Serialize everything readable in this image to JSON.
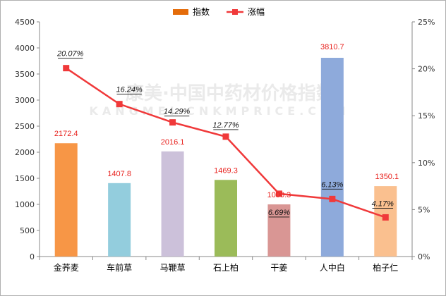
{
  "watermark": {
    "line1": "康美·中国中药材价格指数",
    "line2": "KANGMEI CNKMPRICE.COM"
  },
  "chart_data": {
    "type": "bar",
    "categories": [
      "金荞麦",
      "车前草",
      "马鞭草",
      "石上柏",
      "干姜",
      "人中白",
      "柏子仁"
    ],
    "series": [
      {
        "name": "指数",
        "type": "bar",
        "axis": "left",
        "values": [
          2172.4,
          1407.8,
          2016.1,
          1469.3,
          1000.3,
          3810.7,
          1350.1
        ],
        "value_labels": [
          "2172.4",
          "1407.8",
          "2016.1",
          "1469.3",
          "1000.3",
          "3810.7",
          "1350.1"
        ],
        "colors": [
          "#f79646",
          "#93cddd",
          "#ccc1da",
          "#9bbb59",
          "#d99694",
          "#8eaadb",
          "#fac08f"
        ]
      },
      {
        "name": "涨幅",
        "type": "line",
        "axis": "right",
        "values": [
          20.07,
          16.24,
          14.29,
          12.77,
          6.69,
          6.13,
          4.17
        ],
        "value_labels": [
          "20.07%",
          "16.24%",
          "14.29%",
          "12.77%",
          "6.69%",
          "6.13%",
          "4.17%"
        ],
        "color": "#f0393a"
      }
    ],
    "legend": {
      "position": "top-center",
      "items": [
        {
          "label": "指数",
          "color": "#e46c0a",
          "kind": "bar"
        },
        {
          "label": "涨幅",
          "color": "#f0393a",
          "kind": "line"
        }
      ]
    },
    "y_left": {
      "ylim": [
        0,
        4500
      ],
      "ticks": [
        0,
        500,
        1000,
        1500,
        2000,
        2500,
        3000,
        3500,
        4000,
        4500
      ],
      "tick_labels": [
        "0",
        "500",
        "1000",
        "1500",
        "2000",
        "2500",
        "3000",
        "3500",
        "4000",
        "4500"
      ]
    },
    "y_right": {
      "ylim": [
        0,
        25
      ],
      "ticks": [
        0,
        5,
        10,
        15,
        20,
        25
      ],
      "tick_labels": [
        "0%",
        "5%",
        "10%",
        "15%",
        "20%",
        "25%"
      ]
    },
    "grid": false,
    "title": "",
    "xlabel": "",
    "ylabel": ""
  }
}
